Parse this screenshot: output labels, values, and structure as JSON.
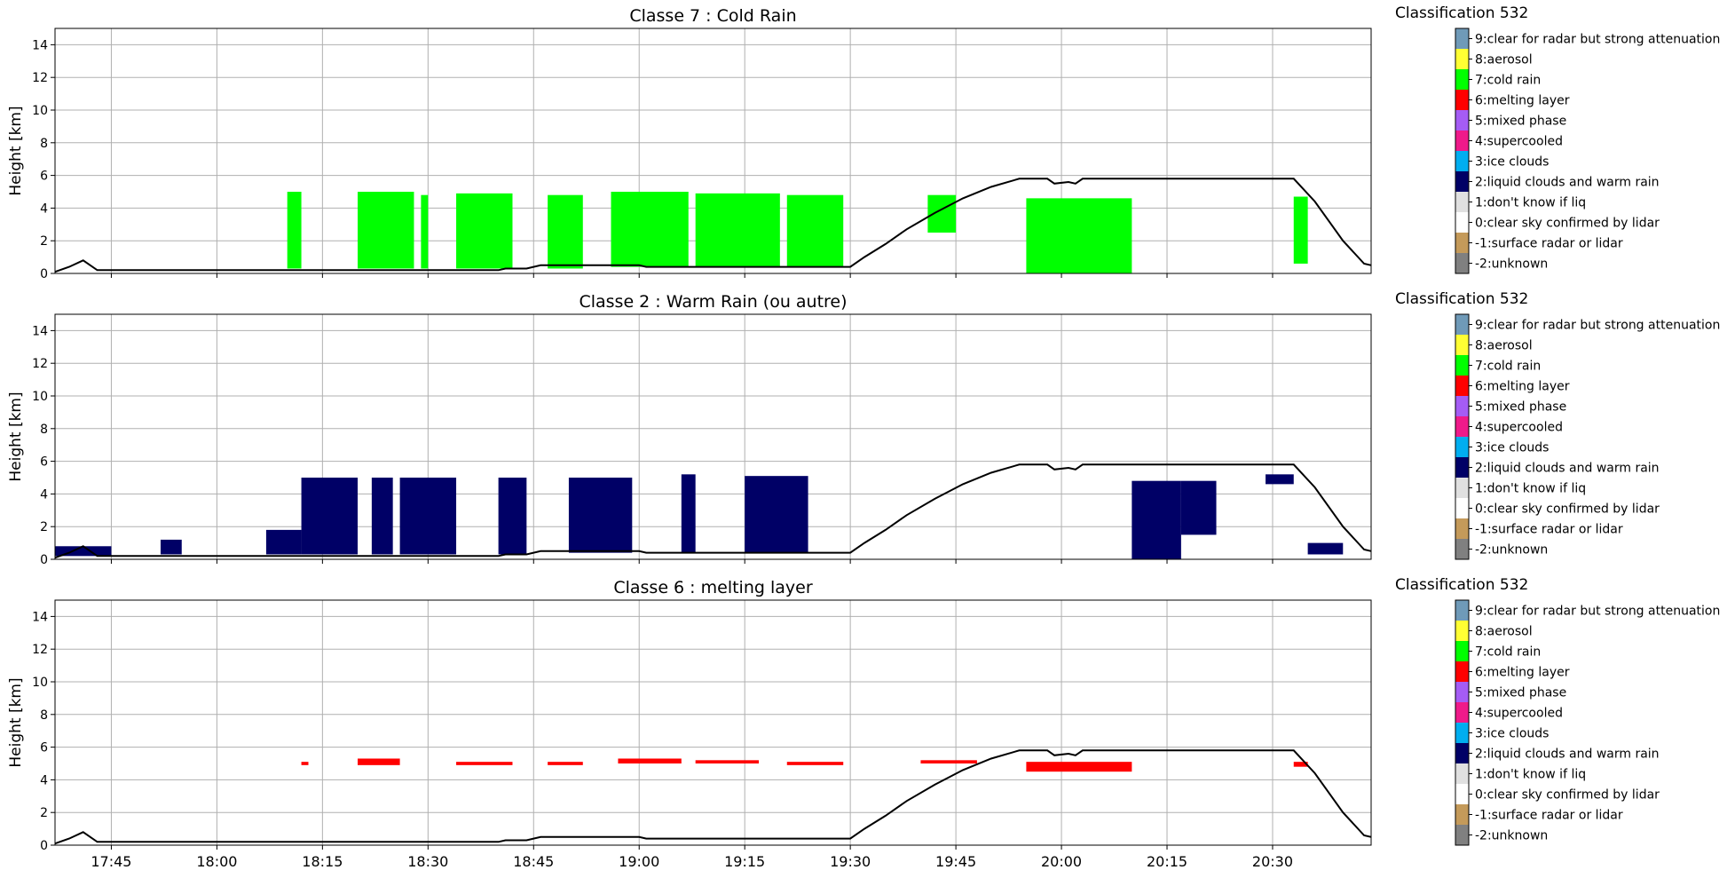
{
  "chart_data": [
    {
      "type": "heatmap",
      "title": "Classe 7 : Cold Rain",
      "ylabel": "Height [km]",
      "ylim": [
        0,
        15
      ],
      "yticks": [
        0,
        2,
        4,
        6,
        8,
        10,
        12,
        14
      ],
      "xlim": [
        "17:37",
        "20:44"
      ],
      "xticks": [
        "17:45",
        "18:00",
        "18:15",
        "18:30",
        "18:45",
        "19:00",
        "19:15",
        "19:30",
        "19:45",
        "20:00",
        "20:15",
        "20:30"
      ],
      "show_xticklabels": false,
      "grid": true,
      "class_shown": "7:cold rain",
      "fill_color": "#00ff00",
      "echo_segments": [
        {
          "start": "18:10",
          "end": "18:12",
          "bottom_km": 0.3,
          "top_km": 5.0
        },
        {
          "start": "18:20",
          "end": "18:28",
          "bottom_km": 0.3,
          "top_km": 5.0
        },
        {
          "start": "18:29",
          "end": "18:30",
          "bottom_km": 0.3,
          "top_km": 4.8
        },
        {
          "start": "18:34",
          "end": "18:42",
          "bottom_km": 0.3,
          "top_km": 4.9
        },
        {
          "start": "18:47",
          "end": "18:52",
          "bottom_km": 0.3,
          "top_km": 4.8
        },
        {
          "start": "18:56",
          "end": "19:07",
          "bottom_km": 0.4,
          "top_km": 5.0
        },
        {
          "start": "19:08",
          "end": "19:20",
          "bottom_km": 0.4,
          "top_km": 4.9
        },
        {
          "start": "19:21",
          "end": "19:29",
          "bottom_km": 0.4,
          "top_km": 4.8
        },
        {
          "start": "19:41",
          "end": "19:45",
          "bottom_km": 2.5,
          "top_km": 4.8
        },
        {
          "start": "19:55",
          "end": "20:10",
          "bottom_km": 0.0,
          "top_km": 4.6
        },
        {
          "start": "20:33",
          "end": "20:35",
          "bottom_km": 0.6,
          "top_km": 4.7
        }
      ]
    },
    {
      "type": "heatmap",
      "title": "Classe 2 : Warm Rain (ou autre)",
      "ylabel": "Height [km]",
      "ylim": [
        0,
        15
      ],
      "yticks": [
        0,
        2,
        4,
        6,
        8,
        10,
        12,
        14
      ],
      "xlim": [
        "17:37",
        "20:44"
      ],
      "xticks": [
        "17:45",
        "18:00",
        "18:15",
        "18:30",
        "18:45",
        "19:00",
        "19:15",
        "19:30",
        "19:45",
        "20:00",
        "20:15",
        "20:30"
      ],
      "show_xticklabels": false,
      "grid": true,
      "class_shown": "2:liquid clouds and warm rain",
      "fill_color": "#000066",
      "echo_segments": [
        {
          "start": "17:37",
          "end": "17:45",
          "bottom_km": 0.2,
          "top_km": 0.8
        },
        {
          "start": "17:52",
          "end": "17:55",
          "bottom_km": 0.3,
          "top_km": 1.2
        },
        {
          "start": "18:07",
          "end": "18:12",
          "bottom_km": 0.3,
          "top_km": 1.8
        },
        {
          "start": "18:12",
          "end": "18:20",
          "bottom_km": 0.3,
          "top_km": 5.0
        },
        {
          "start": "18:22",
          "end": "18:25",
          "bottom_km": 0.3,
          "top_km": 5.0
        },
        {
          "start": "18:26",
          "end": "18:34",
          "bottom_km": 0.3,
          "top_km": 5.0
        },
        {
          "start": "18:40",
          "end": "18:44",
          "bottom_km": 0.3,
          "top_km": 5.0
        },
        {
          "start": "18:50",
          "end": "18:59",
          "bottom_km": 0.4,
          "top_km": 5.0
        },
        {
          "start": "19:06",
          "end": "19:08",
          "bottom_km": 0.4,
          "top_km": 5.2
        },
        {
          "start": "19:15",
          "end": "19:24",
          "bottom_km": 0.4,
          "top_km": 5.1
        },
        {
          "start": "20:10",
          "end": "20:17",
          "bottom_km": 0.0,
          "top_km": 4.8
        },
        {
          "start": "20:17",
          "end": "20:22",
          "bottom_km": 1.5,
          "top_km": 4.8
        },
        {
          "start": "20:29",
          "end": "20:33",
          "bottom_km": 4.6,
          "top_km": 5.2
        },
        {
          "start": "20:35",
          "end": "20:40",
          "bottom_km": 0.3,
          "top_km": 1.0
        }
      ]
    },
    {
      "type": "heatmap",
      "title": "Classe 6 : melting layer",
      "ylabel": "Height [km]",
      "ylim": [
        0,
        15
      ],
      "yticks": [
        0,
        2,
        4,
        6,
        8,
        10,
        12,
        14
      ],
      "xlim": [
        "17:37",
        "20:44"
      ],
      "xticks": [
        "17:45",
        "18:00",
        "18:15",
        "18:30",
        "18:45",
        "19:00",
        "19:15",
        "19:30",
        "19:45",
        "20:00",
        "20:15",
        "20:30"
      ],
      "show_xticklabels": true,
      "grid": true,
      "class_shown": "6:melting layer",
      "fill_color": "#ff0000",
      "echo_segments": [
        {
          "start": "18:12",
          "end": "18:13",
          "bottom_km": 4.9,
          "top_km": 5.1
        },
        {
          "start": "18:20",
          "end": "18:26",
          "bottom_km": 4.9,
          "top_km": 5.3
        },
        {
          "start": "18:34",
          "end": "18:42",
          "bottom_km": 4.9,
          "top_km": 5.1
        },
        {
          "start": "18:47",
          "end": "18:52",
          "bottom_km": 4.9,
          "top_km": 5.1
        },
        {
          "start": "18:57",
          "end": "19:06",
          "bottom_km": 5.0,
          "top_km": 5.3
        },
        {
          "start": "19:08",
          "end": "19:17",
          "bottom_km": 5.0,
          "top_km": 5.2
        },
        {
          "start": "19:21",
          "end": "19:29",
          "bottom_km": 4.9,
          "top_km": 5.1
        },
        {
          "start": "19:40",
          "end": "19:48",
          "bottom_km": 5.0,
          "top_km": 5.2
        },
        {
          "start": "19:55",
          "end": "20:10",
          "bottom_km": 4.5,
          "top_km": 5.1
        },
        {
          "start": "20:33",
          "end": "20:35",
          "bottom_km": 4.8,
          "top_km": 5.1
        }
      ]
    }
  ],
  "altitude_line": {
    "color": "#000000",
    "points": [
      [
        "17:37",
        0.1
      ],
      [
        "17:39",
        0.4
      ],
      [
        "17:41",
        0.8
      ],
      [
        "17:43",
        0.2
      ],
      [
        "18:40",
        0.2
      ],
      [
        "18:41",
        0.3
      ],
      [
        "18:44",
        0.3
      ],
      [
        "18:46",
        0.5
      ],
      [
        "19:00",
        0.5
      ],
      [
        "19:01",
        0.4
      ],
      [
        "19:30",
        0.4
      ],
      [
        "19:32",
        1.0
      ],
      [
        "19:35",
        1.8
      ],
      [
        "19:38",
        2.7
      ],
      [
        "19:42",
        3.7
      ],
      [
        "19:46",
        4.6
      ],
      [
        "19:50",
        5.3
      ],
      [
        "19:54",
        5.8
      ],
      [
        "19:58",
        5.8
      ],
      [
        "19:59",
        5.5
      ],
      [
        "20:01",
        5.6
      ],
      [
        "20:02",
        5.5
      ],
      [
        "20:03",
        5.8
      ],
      [
        "20:33",
        5.8
      ],
      [
        "20:36",
        4.4
      ],
      [
        "20:40",
        2.0
      ],
      [
        "20:43",
        0.6
      ],
      [
        "20:44",
        0.5
      ]
    ]
  },
  "legend": {
    "title": "Classification 532",
    "items": [
      {
        "label": "9:clear for radar but strong attenuation",
        "color": "#6f9ab8"
      },
      {
        "label": "8:aerosol",
        "color": "#ffff33"
      },
      {
        "label": "7:cold rain",
        "color": "#00ff00"
      },
      {
        "label": "6:melting layer",
        "color": "#ff0000"
      },
      {
        "label": "5:mixed phase",
        "color": "#a55cf5"
      },
      {
        "label": "4:supercooled",
        "color": "#ef1a8a"
      },
      {
        "label": "3:ice clouds",
        "color": "#00aef0"
      },
      {
        "label": "2:liquid clouds and warm rain",
        "color": "#000066"
      },
      {
        "label": "1:don't know if liq",
        "color": "#e0e0e0"
      },
      {
        "label": "0:clear sky confirmed by lidar",
        "color": "#ffffff"
      },
      {
        "label": "-1:surface radar or lidar",
        "color": "#c49a5a"
      },
      {
        "label": "-2:unknown",
        "color": "#808080"
      }
    ]
  }
}
